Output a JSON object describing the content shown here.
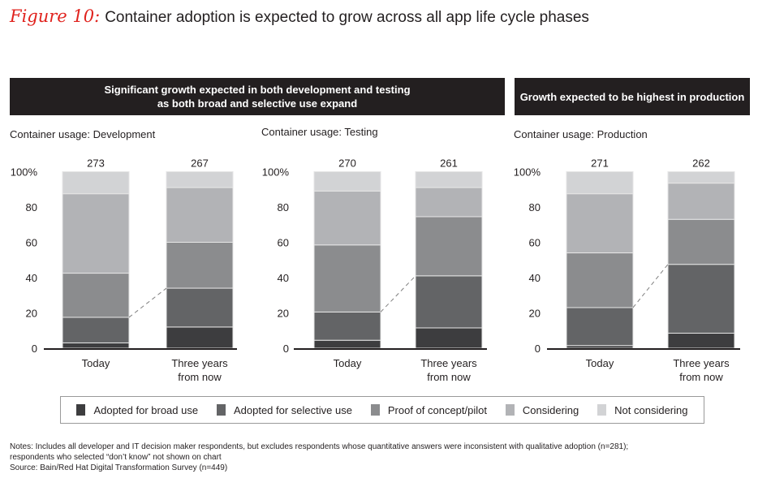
{
  "figure": {
    "label": "Figure 10:",
    "title": "Container adoption is expected to grow across all app life cycle phases"
  },
  "headers": {
    "left_line1": "Significant growth expected in both development and testing",
    "left_line2": "as both broad and selective use expand",
    "right": "Growth expected to be highest in production"
  },
  "legend": [
    {
      "label": "Adopted for broad use",
      "color": "#3d3d3f"
    },
    {
      "label": "Adopted for selective use",
      "color": "#636466"
    },
    {
      "label": "Proof of concept/pilot",
      "color": "#8b8c8e"
    },
    {
      "label": "Considering",
      "color": "#b2b3b6"
    },
    {
      "label": "Not considering",
      "color": "#d2d3d5"
    }
  ],
  "notes": {
    "line1": "Notes: Includes all developer and IT decision maker respondents, but excludes respondents whose quantitative answers were inconsistent with qualitative adoption (n=281);",
    "line2": "respondents who selected “don’t know” not shown on chart",
    "source": "Source: Bain/Red Hat Digital Transformation Survey (n=449)"
  },
  "chart_data": [
    {
      "type": "bar",
      "stacked": true,
      "title": "Container usage: Development",
      "categories": [
        "Today",
        "Three years from now"
      ],
      "category_lines": [
        [
          "Today"
        ],
        [
          "Three years",
          "from now"
        ]
      ],
      "sample_sizes": [
        "273",
        "267"
      ],
      "ylim": [
        0,
        100
      ],
      "yticks": [
        "0",
        "20",
        "40",
        "60",
        "80",
        "100%"
      ],
      "series": [
        {
          "name": "Adopted for broad use",
          "values": [
            3,
            12
          ]
        },
        {
          "name": "Adopted for selective use",
          "values": [
            14.5,
            22
          ]
        },
        {
          "name": "Proof of concept/pilot",
          "values": [
            25,
            26
          ]
        },
        {
          "name": "Considering",
          "values": [
            45,
            31
          ]
        },
        {
          "name": "Not considering",
          "values": [
            12.5,
            9
          ]
        }
      ]
    },
    {
      "type": "bar",
      "stacked": true,
      "title": "Container usage: Testing",
      "categories": [
        "Today",
        "Three years from now"
      ],
      "category_lines": [
        [
          "Today"
        ],
        [
          "Three years",
          "from now"
        ]
      ],
      "sample_sizes": [
        "270",
        "261"
      ],
      "ylim": [
        0,
        100
      ],
      "yticks": [
        "0",
        "20",
        "40",
        "60",
        "80",
        "100%"
      ],
      "series": [
        {
          "name": "Adopted for broad use",
          "values": [
            4.5,
            11.5
          ]
        },
        {
          "name": "Adopted for selective use",
          "values": [
            16,
            29.5
          ]
        },
        {
          "name": "Proof of concept/pilot",
          "values": [
            38,
            33.5
          ]
        },
        {
          "name": "Considering",
          "values": [
            30.5,
            16.5
          ]
        },
        {
          "name": "Not considering",
          "values": [
            11,
            9
          ]
        }
      ]
    },
    {
      "type": "bar",
      "stacked": true,
      "title": "Container usage: Production",
      "categories": [
        "Today",
        "Three years from now"
      ],
      "category_lines": [
        [
          "Today"
        ],
        [
          "Three years",
          "from now"
        ]
      ],
      "sample_sizes": [
        "271",
        "262"
      ],
      "ylim": [
        0,
        100
      ],
      "yticks": [
        "0",
        "20",
        "40",
        "60",
        "80",
        "100%"
      ],
      "series": [
        {
          "name": "Adopted for broad use",
          "values": [
            1.5,
            8.5
          ]
        },
        {
          "name": "Adopted for selective use",
          "values": [
            21.5,
            39
          ]
        },
        {
          "name": "Proof of concept/pilot",
          "values": [
            31,
            25.5
          ]
        },
        {
          "name": "Considering",
          "values": [
            33.5,
            20.5
          ]
        },
        {
          "name": "Not considering",
          "values": [
            12.5,
            6.5
          ]
        }
      ]
    }
  ]
}
